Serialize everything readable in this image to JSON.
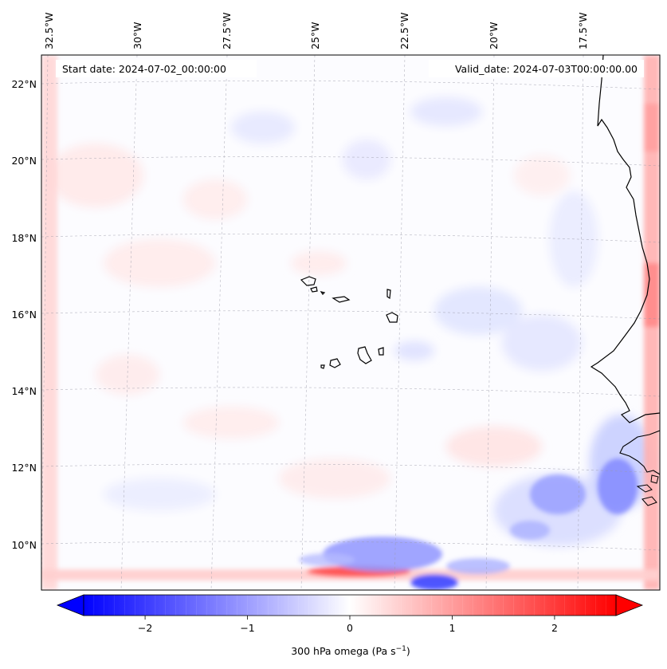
{
  "map": {
    "start_label": "Start date: 2024-07-02_00:00:00",
    "valid_label": "Valid_date: 2024-07-03T00:00:00.00",
    "lon_labels": [
      "32.5°W",
      "30°W",
      "27.5°W",
      "25°W",
      "22.5°W",
      "20°W",
      "17.5°W"
    ],
    "lat_labels": [
      "22°N",
      "20°N",
      "18°N",
      "16°N",
      "14°N",
      "12°N",
      "10°N"
    ],
    "region": "Cabo Verde and West African coast"
  },
  "colorbar": {
    "label": "300 hPa omega (Pa s",
    "label_sup": "−1",
    "label_close": ")",
    "ticks": [
      "−2",
      "−1",
      "0",
      "1",
      "2"
    ],
    "tick_values": [
      -2,
      -1,
      0,
      1,
      2
    ],
    "range": [
      -2.6,
      2.6
    ],
    "negative_color": "#0000ff",
    "zero_color": "#ffffff",
    "positive_color": "#ff0000"
  },
  "colors": {
    "coastline": "#000000",
    "gridline": "#9a9aa8",
    "background": "#ffffff"
  }
}
